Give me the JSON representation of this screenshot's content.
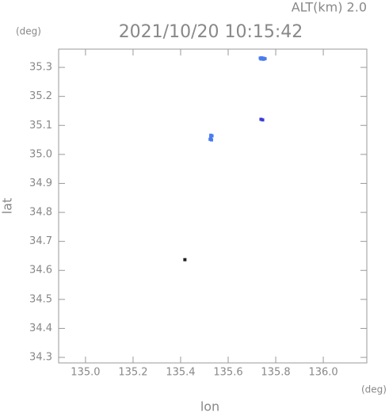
{
  "chart_data": {
    "type": "scatter",
    "title": "2021/10/20 10:15:42",
    "annotation": "ALT(km) 2.0",
    "y_unit": "(deg)",
    "x_unit": "(deg)",
    "xlabel": "lon",
    "ylabel": "lat",
    "xlim": [
      134.887,
      136.183
    ],
    "ylim": [
      34.281,
      35.363
    ],
    "xticks": [
      {
        "value": 135.0,
        "label": "135.0"
      },
      135.2,
      135.4,
      135.6,
      135.8,
      {
        "value": 136.0,
        "label": "136.0"
      }
    ],
    "yticks": [
      {
        "value": 34.3,
        "label": "34.3"
      },
      34.4,
      34.5,
      34.6,
      34.7,
      34.8,
      34.9,
      {
        "value": 35.0,
        "label": "35.0"
      },
      35.1,
      35.2,
      35.3
    ],
    "series": [
      {
        "color": "#4a7cf0",
        "x": [
          135.735,
          135.74,
          135.745,
          135.75,
          135.755,
          135.738,
          135.748,
          135.527,
          135.532,
          135.527,
          135.524,
          135.53
        ],
        "values": [
          35.332,
          35.333,
          35.332,
          35.331,
          35.33,
          35.329,
          35.328,
          35.066,
          35.064,
          35.058,
          35.052,
          35.05
        ]
      },
      {
        "color": "#3b3bd6",
        "x": [
          135.738,
          135.745
        ],
        "values": [
          35.121,
          35.119
        ]
      },
      {
        "color": "#222222",
        "x": [
          135.418
        ],
        "values": [
          34.637
        ]
      }
    ]
  }
}
